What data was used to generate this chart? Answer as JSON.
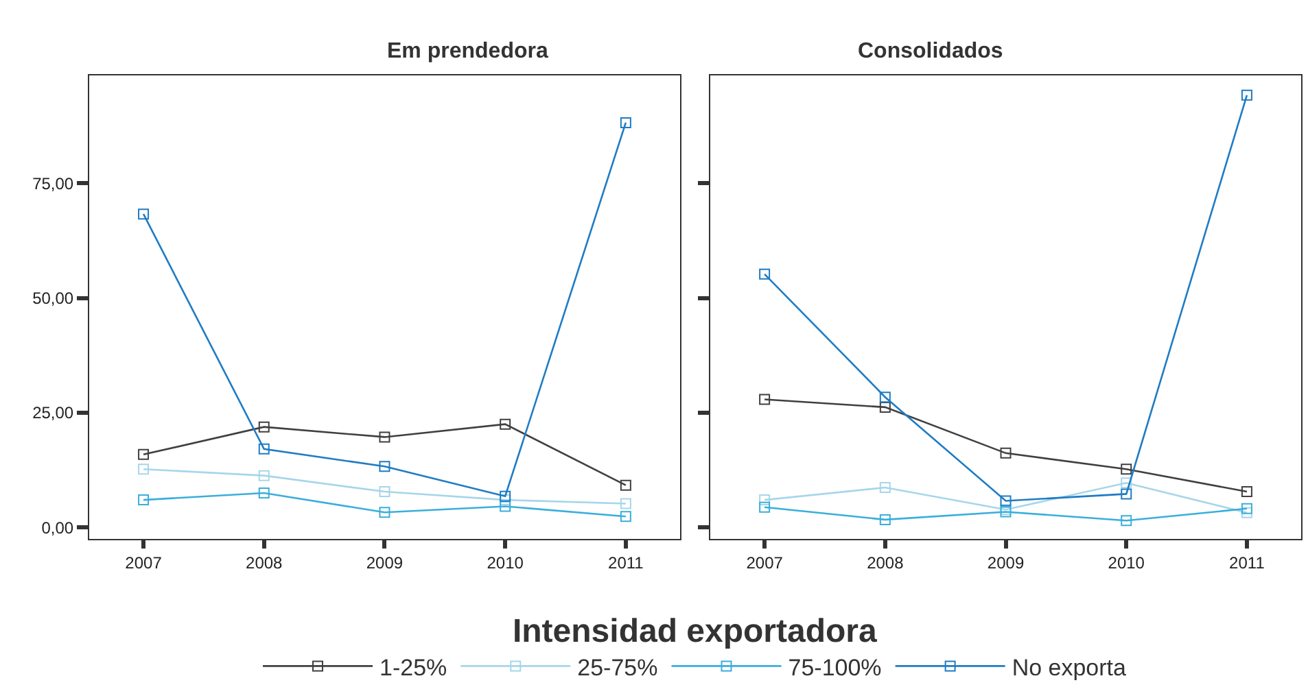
{
  "chart_data": [
    {
      "type": "line",
      "title": "Em prendedora",
      "categories": [
        "2007",
        "2008",
        "2009",
        "2010",
        "2011"
      ],
      "ylim": [
        -2.5,
        98.5
      ],
      "yticks": [
        {
          "value": 0,
          "label": "0,00"
        },
        {
          "value": 25,
          "label": "25,00"
        },
        {
          "value": 50,
          "label": "50,00"
        },
        {
          "value": 75,
          "label": "75,00"
        }
      ],
      "marker": "square",
      "legend": "bottom",
      "legend_title": "Intensidad exportadora",
      "series": [
        {
          "name": "1-25%",
          "color": "#404040",
          "values": [
            15.9,
            21.9,
            19.7,
            22.5,
            9.2
          ]
        },
        {
          "name": "25-75%",
          "color": "#a6d6ea",
          "values": [
            12.7,
            11.3,
            7.8,
            6.0,
            5.2
          ]
        },
        {
          "name": "75-100%",
          "color": "#3aaedc",
          "values": [
            6.0,
            7.5,
            3.3,
            4.6,
            2.4
          ]
        },
        {
          "name": "No exporta",
          "color": "#1f7cc4",
          "values": [
            68.3,
            17.1,
            13.3,
            6.8,
            88.2
          ]
        }
      ]
    },
    {
      "type": "line",
      "title": "Consolidados",
      "categories": [
        "2007",
        "2008",
        "2009",
        "2010",
        "2011"
      ],
      "ylim": [
        -2.5,
        98.5
      ],
      "yticks": [
        {
          "value": 0,
          "label": null
        },
        {
          "value": 25,
          "label": null
        },
        {
          "value": 50,
          "label": null
        },
        {
          "value": 75,
          "label": null
        }
      ],
      "tick_labels": "x",
      "marker": "square",
      "legend": "bottom",
      "series": [
        {
          "name": "1-25%",
          "color": "#404040",
          "values": [
            27.9,
            26.2,
            16.2,
            12.7,
            7.8
          ]
        },
        {
          "name": "25-75%",
          "color": "#a6d6ea",
          "values": [
            6.0,
            8.7,
            3.9,
            9.7,
            3.2
          ]
        },
        {
          "name": "75-100%",
          "color": "#3aaedc",
          "values": [
            4.4,
            1.7,
            3.4,
            1.5,
            4.1
          ]
        },
        {
          "name": "No exporta",
          "color": "#1f7cc4",
          "values": [
            55.2,
            28.4,
            5.8,
            7.3,
            94.2
          ]
        }
      ]
    }
  ]
}
